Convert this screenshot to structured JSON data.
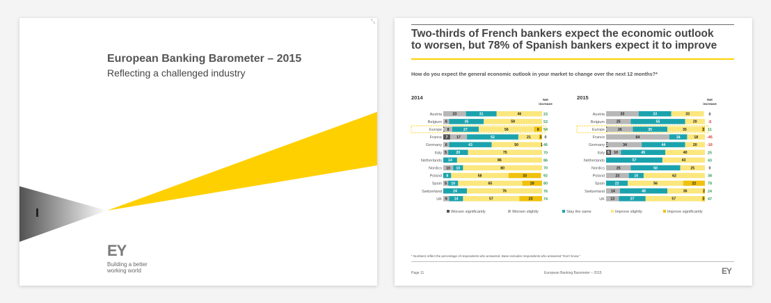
{
  "cover": {
    "title": "European Banking Barometer – 2015",
    "subtitle": "Reflecting a challenged industry",
    "corner_icon": "expand-icon",
    "logo": "EY",
    "tagline_1": "Building a better",
    "tagline_2": "working world"
  },
  "page": {
    "title_line1": "Two-thirds of French bankers expect the economic outlook",
    "title_line2": "to worsen, but 78% of Spanish bankers expect it to improve",
    "question": "How do you expect the general economic outlook in your market to change over the next 12 months?*",
    "footnote": "* Numbers reflect the percentage of respondents who answered. Base excludes respondents who answered \"Don't know.\"",
    "page_number": "Page 11",
    "footer_title": "European Banking Barometer – 2015",
    "logo": "EY"
  },
  "colors": {
    "worsen_significantly": "#555555",
    "worsen_slightly": "#b7b7b7",
    "stay_the_same": "#1ba3ad",
    "improve_slightly": "#fbe77d",
    "improve_significantly": "#f0c20e",
    "accent_yellow": "#ffd000",
    "positive": "#2e9a5b",
    "negative": "#d9342b"
  },
  "chart_data": [
    {
      "type": "bar",
      "stacked": "horizontal-100",
      "title": "2014",
      "net_label_1": "Net",
      "net_label_2": "increase",
      "highlighted_category": "Europe",
      "categories": [
        "Austria",
        "Belgium",
        "Europe",
        "France",
        "Germany",
        "Italy",
        "Netherlands",
        "Nordics",
        "Poland",
        "Spain",
        "Switzerland",
        "UK"
      ],
      "series": [
        {
          "name": "Worsen significantly",
          "values": [
            0,
            0,
            1,
            7,
            0,
            0,
            0,
            0,
            0,
            0,
            0,
            0
          ],
          "labels": [
            "",
            "",
            "1",
            "7",
            "",
            "",
            "",
            "",
            "",
            "",
            "",
            ""
          ]
        },
        {
          "name": "Worsen slightly",
          "values": [
            23,
            6,
            8,
            17,
            6,
            5,
            0,
            10,
            0,
            5,
            0,
            6
          ],
          "labels": [
            "23",
            "6",
            "8",
            "17",
            "6",
            "5",
            "",
            "10",
            "",
            "5",
            "",
            "6"
          ]
        },
        {
          "name": "Stay the same",
          "values": [
            31,
            35,
            27,
            52,
            43,
            20,
            14,
            10,
            8,
            10,
            24,
            14
          ],
          "labels": [
            "31",
            "35",
            "27",
            "52",
            "43",
            "20",
            "14",
            "10",
            "8",
            "10",
            "24",
            "14"
          ]
        },
        {
          "name": "Improve slightly",
          "values": [
            46,
            59,
            56,
            21,
            50,
            75,
            86,
            80,
            58,
            65,
            76,
            57
          ],
          "labels": [
            "46",
            "59",
            "56",
            "21",
            "50",
            "75",
            "86",
            "80",
            "58",
            "65",
            "76",
            "57"
          ]
        },
        {
          "name": "Improve significantly",
          "values": [
            0,
            0,
            8,
            3,
            1,
            0,
            0,
            0,
            33,
            20,
            0,
            23
          ],
          "labels": [
            "",
            "",
            "8",
            "3",
            "1",
            "",
            "",
            "",
            "33",
            "20",
            "",
            "23"
          ]
        }
      ],
      "net_increase": [
        "23",
        "53",
        "54",
        "0",
        "46",
        "70",
        "86",
        "70",
        "92",
        "80",
        "76",
        "74"
      ],
      "net_color": [
        "positive",
        "positive",
        "positive",
        "neutral",
        "positive",
        "positive",
        "positive",
        "positive",
        "positive",
        "positive",
        "positive",
        "positive"
      ]
    },
    {
      "type": "bar",
      "stacked": "horizontal-100",
      "title": "2015",
      "net_label_1": "Net",
      "net_label_2": "increase",
      "highlighted_category": "Europe",
      "categories": [
        "Austria",
        "Belgium",
        "Europe",
        "France",
        "Germany",
        "Italy",
        "Netherlands",
        "Nordics",
        "Poland",
        "Spain",
        "Switzerland",
        "UK"
      ],
      "series": [
        {
          "name": "Worsen significantly",
          "values": [
            0,
            0,
            1,
            0,
            2,
            5,
            0,
            0,
            0,
            0,
            0,
            0
          ],
          "labels": [
            "",
            "",
            "1",
            "",
            "2",
            "5",
            "",
            "",
            "",
            "",
            "",
            ""
          ]
        },
        {
          "name": "Worsen slightly",
          "values": [
            33,
            25,
            26,
            64,
            34,
            10,
            0,
            25,
            23,
            0,
            14,
            13
          ],
          "labels": [
            "33",
            "25",
            "26",
            "64",
            "34",
            "10",
            "",
            "25",
            "23",
            "",
            "14",
            "13"
          ]
        },
        {
          "name": "Stay the same",
          "values": [
            33,
            55,
            35,
            18,
            44,
            45,
            57,
            50,
            15,
            22,
            48,
            27
          ],
          "labels": [
            "33",
            "55",
            "35",
            "18",
            "44",
            "45",
            "57",
            "50",
            "15",
            "22",
            "48",
            "27"
          ]
        },
        {
          "name": "Improve slightly",
          "values": [
            33,
            20,
            35,
            18,
            20,
            40,
            43,
            25,
            62,
            56,
            36,
            57
          ],
          "labels": [
            "33",
            "20",
            "35",
            "18",
            "20",
            "40",
            "43",
            "25",
            "62",
            "56",
            "36",
            "57"
          ]
        },
        {
          "name": "Improve significantly",
          "values": [
            0,
            0,
            3,
            0,
            0,
            0,
            0,
            0,
            0,
            22,
            2,
            3
          ],
          "labels": [
            "",
            "",
            "3",
            "",
            "",
            "",
            "",
            "",
            "",
            "22",
            "2",
            "3"
          ]
        }
      ],
      "net_increase": [
        "0",
        "-5",
        "11",
        "-45",
        "-16",
        "25",
        "43",
        "0",
        "38",
        "78",
        "24",
        "47"
      ],
      "net_color": [
        "neutral",
        "negative",
        "positive",
        "negative",
        "negative",
        "positive",
        "positive",
        "neutral",
        "positive",
        "positive",
        "positive",
        "positive"
      ]
    }
  ],
  "legend": [
    {
      "label": "Worsen significantly",
      "color": "#555555"
    },
    {
      "label": "Worsen slightly",
      "color": "#b7b7b7"
    },
    {
      "label": "Stay the same",
      "color": "#1ba3ad"
    },
    {
      "label": "Improve slightly",
      "color": "#fbe77d"
    },
    {
      "label": "Improve significantly",
      "color": "#f0c20e"
    }
  ]
}
